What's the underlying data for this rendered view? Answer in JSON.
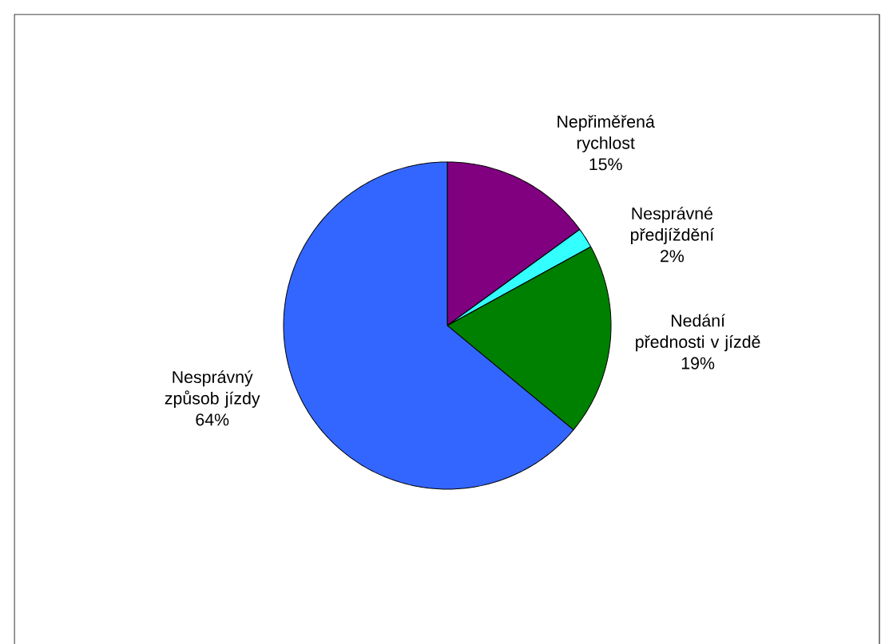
{
  "chart_data": {
    "type": "pie",
    "categories": [
      "Nepřiměřená rychlost",
      "Nesprávné předjíždění",
      "Nedání přednosti v jízdě",
      "Nesprávný způsob jízdy"
    ],
    "values": [
      15,
      2,
      19,
      64
    ],
    "value_labels": [
      "15%",
      "2%",
      "19%",
      "64%"
    ],
    "colors": [
      "#800080",
      "#33ffff",
      "#008000",
      "#3366ff"
    ]
  }
}
